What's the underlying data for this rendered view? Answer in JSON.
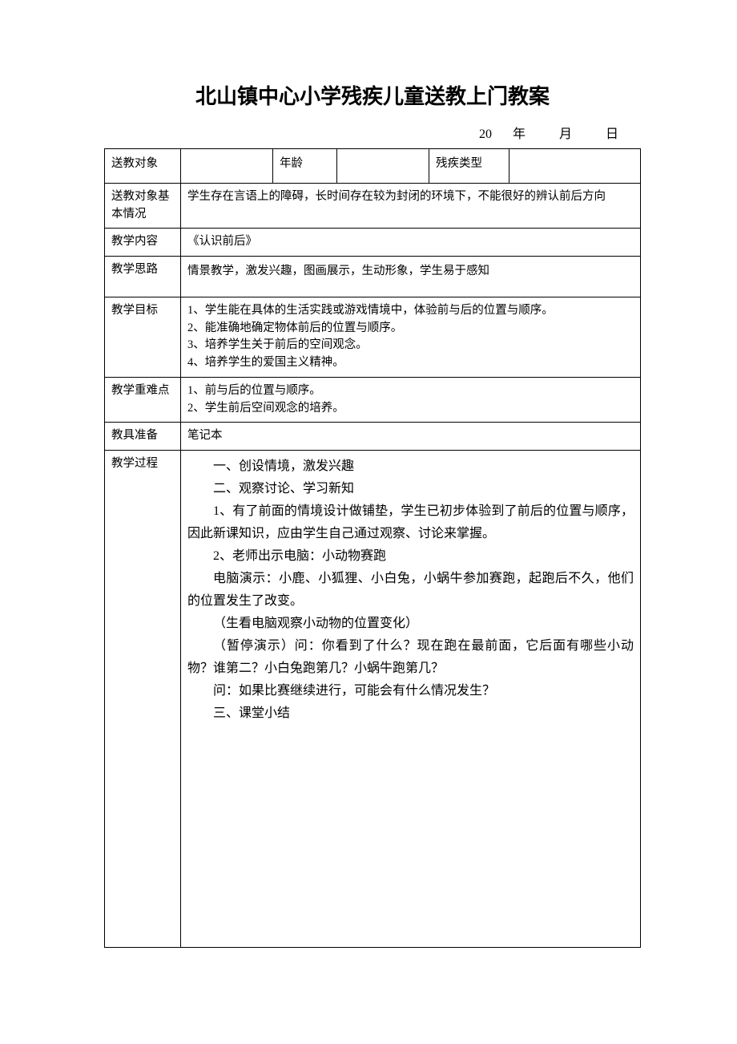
{
  "title": "北山镇中心小学残疾儿童送教上门教案",
  "date_line": "20　 年　　 月　　 日",
  "rows": {
    "subject_label": "送教对象",
    "subject_value": "",
    "age_label": "年龄",
    "age_value": "",
    "type_label": "残疾类型",
    "type_value": "",
    "basic_label": "送教对象基本情况",
    "basic_value": "学生存在言语上的障碍，长时间存在较为封闭的环境下，不能很好的辨认前后方向",
    "content_label": "教学内容",
    "content_value": "《认识前后》",
    "thought_label": "教学思路",
    "thought_value": "情景教学，激发兴趣，图画展示，生动形象，学生易于感知",
    "goal_label": "教学目标",
    "goal_lines": [
      "1、学生能在具体的生活实践或游戏情境中，体验前与后的位置与顺序。",
      "2、能准确地确定物体前后的位置与顺序。",
      "3、培养学生关于前后的空间观念。",
      "4、培养学生的爱国主义精神。"
    ],
    "diff_label": "教学重难点",
    "diff_lines": [
      "1、前与后的位置与顺序。",
      "2、学生前后空间观念的培养。"
    ],
    "prep_label": "教具准备",
    "prep_value": "笔记本",
    "proc_label": "教学过程",
    "proc_lines": [
      {
        "t": "一、创设情境，激发兴趣",
        "indent": true
      },
      {
        "t": "二、观察讨论、学习新知",
        "indent": true
      },
      {
        "t": "1、有了前面的情境设计做铺垫，学生已初步体验到了前后的位置与顺序，因此新课知识，应由学生自己通过观察、讨论来掌握。",
        "indent": true,
        "justify": true
      },
      {
        "t": "2、老师出示电脑：小动物赛跑",
        "indent": true
      },
      {
        "t": "电脑演示：小鹿、小狐狸、小白兔，小蜗牛参加赛跑，起跑后不久，他们的位置发生了改变。",
        "indent": true,
        "justify": true
      },
      {
        "t": "（生看电脑观察小动物的位置变化）",
        "indent": true
      },
      {
        "t": "（暂停演示）问：你看到了什么？现在跑在最前面，它后面有哪些小动物？谁第二？小白兔跑第几？小蜗牛跑第几？",
        "indent": true,
        "justify": true
      },
      {
        "t": "问：如果比赛继续进行，可能会有什么情况发生？",
        "indent": true
      },
      {
        "t": "三、课堂小结",
        "indent": true
      }
    ]
  },
  "colors": {
    "text": "#000000",
    "border": "#000000",
    "background": "#ffffff"
  }
}
